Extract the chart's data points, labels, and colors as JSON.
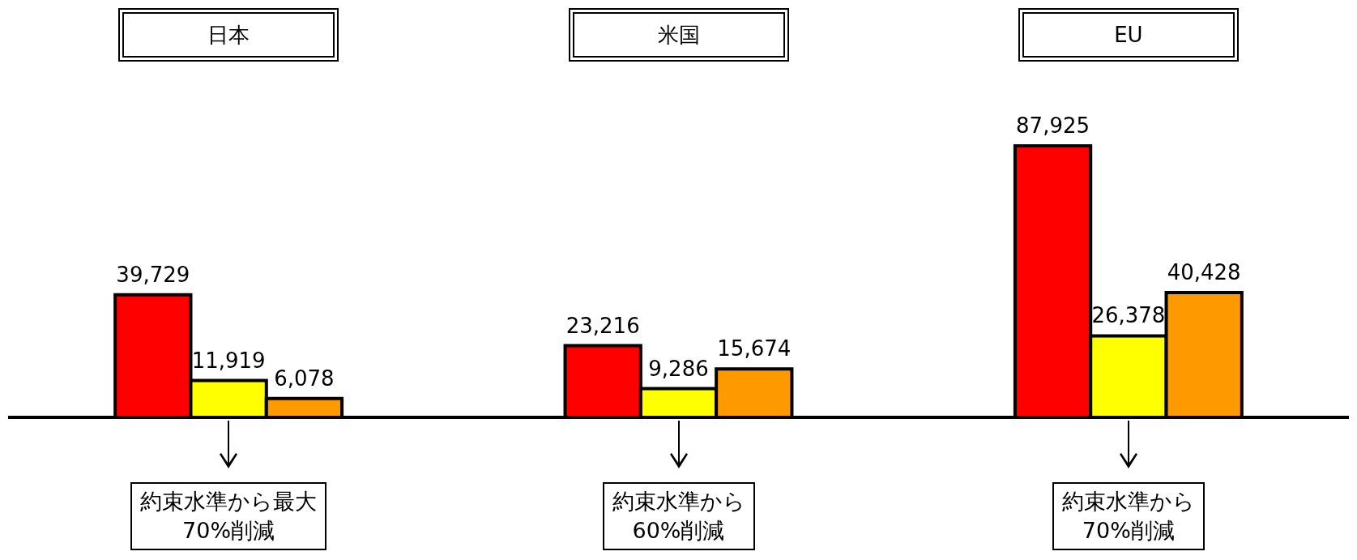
{
  "chart_data": {
    "type": "bar",
    "categories": [
      "日本",
      "米国",
      "EU"
    ],
    "series": [
      {
        "color": "#ff0000",
        "values": [
          39729,
          23216,
          87925
        ],
        "value_labels": [
          "39,729",
          "23,216",
          "87,925"
        ]
      },
      {
        "color": "#ffff00",
        "values": [
          11919,
          9286,
          26378
        ],
        "value_labels": [
          "11,919",
          "9,286",
          "26,378"
        ]
      },
      {
        "color": "#ff9900",
        "values": [
          6078,
          15674,
          40428
        ],
        "value_labels": [
          "6,078",
          "15,674",
          "40,428"
        ]
      }
    ],
    "annotations": [
      "約束水準から最大\n70%削減",
      "約束水準から\n60%削減",
      "約束水準から\n70%削減"
    ]
  }
}
